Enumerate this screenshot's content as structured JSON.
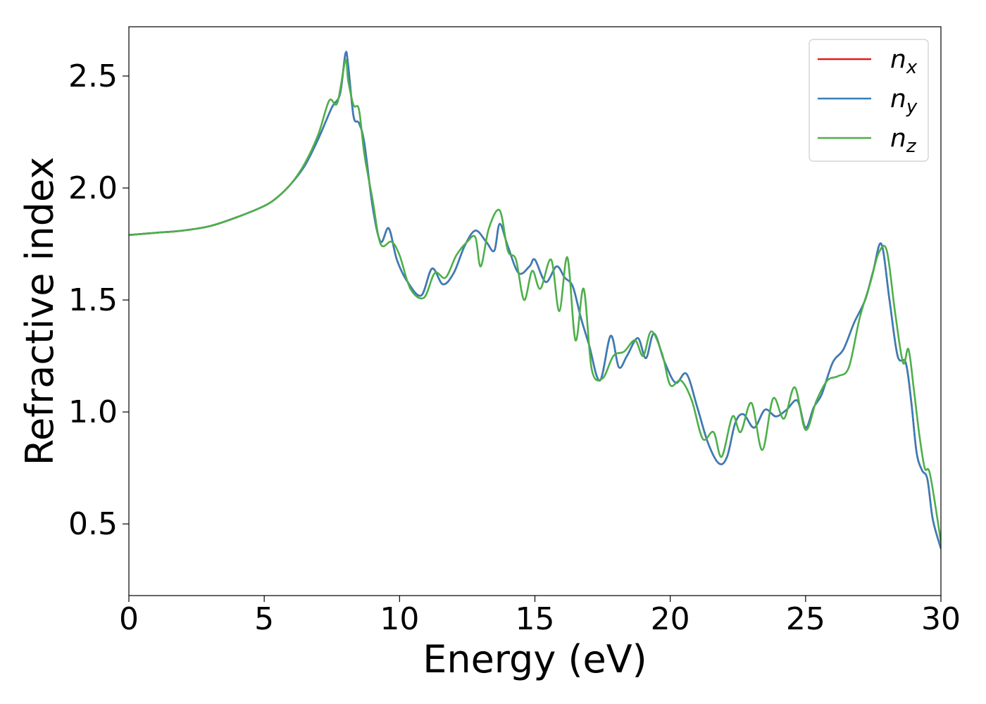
{
  "chart_data": {
    "type": "line",
    "title": "",
    "xlabel": "Energy (eV)",
    "ylabel": "Refractive index",
    "xlim": [
      0,
      30
    ],
    "ylim": [
      0.18,
      2.72
    ],
    "xticks": [
      0,
      5,
      10,
      15,
      20,
      25,
      30
    ],
    "xtick_labels": [
      "0",
      "5",
      "10",
      "15",
      "20",
      "25",
      "30"
    ],
    "yticks": [
      0.5,
      1.0,
      1.5,
      2.0,
      2.5
    ],
    "ytick_labels": [
      "0.5",
      "1.0",
      "1.5",
      "2.0",
      "2.5"
    ],
    "grid": false,
    "legend_position": "top-right",
    "series": [
      {
        "name": "n_x",
        "label_base": "n",
        "label_sub": "x",
        "color": "#e41a1c",
        "x": [
          0,
          1,
          2,
          3,
          4,
          5,
          5.5,
          6,
          6.5,
          7,
          7.5,
          7.8,
          8.0,
          8.1,
          8.3,
          8.5,
          8.7,
          9.0,
          9.3,
          9.6,
          9.9,
          10.3,
          10.8,
          11.2,
          11.6,
          12.0,
          12.4,
          12.8,
          13.2,
          13.5,
          13.7,
          14.0,
          14.4,
          14.8,
          15.0,
          15.4,
          15.8,
          16.1,
          16.4,
          16.7,
          17.0,
          17.4,
          17.8,
          18.1,
          18.4,
          18.8,
          19.1,
          19.4,
          19.8,
          20.2,
          20.6,
          21.0,
          21.4,
          21.8,
          22.1,
          22.4,
          22.7,
          23.1,
          23.5,
          23.9,
          24.3,
          24.7,
          25.0,
          25.3,
          25.6,
          26.0,
          26.4,
          26.8,
          27.2,
          27.5,
          27.8,
          28.1,
          28.4,
          28.7,
          28.9,
          29.1,
          29.3,
          29.5,
          29.7,
          30.0
        ],
        "y": [
          1.79,
          1.8,
          1.81,
          1.83,
          1.87,
          1.92,
          1.96,
          2.02,
          2.1,
          2.22,
          2.36,
          2.42,
          2.6,
          2.55,
          2.32,
          2.29,
          2.2,
          1.92,
          1.76,
          1.82,
          1.68,
          1.58,
          1.52,
          1.64,
          1.57,
          1.62,
          1.74,
          1.81,
          1.76,
          1.72,
          1.84,
          1.74,
          1.62,
          1.65,
          1.68,
          1.58,
          1.65,
          1.6,
          1.56,
          1.42,
          1.3,
          1.14,
          1.34,
          1.2,
          1.25,
          1.33,
          1.24,
          1.35,
          1.22,
          1.13,
          1.17,
          1.02,
          0.86,
          0.77,
          0.8,
          0.95,
          0.99,
          0.93,
          1.01,
          0.98,
          1.01,
          1.05,
          0.93,
          1.02,
          1.08,
          1.22,
          1.28,
          1.4,
          1.5,
          1.63,
          1.75,
          1.5,
          1.25,
          1.22,
          1.05,
          0.82,
          0.74,
          0.7,
          0.52,
          0.39
        ]
      },
      {
        "name": "n_y",
        "label_base": "n",
        "label_sub": "y",
        "color": "#377eb8",
        "x": [
          0,
          1,
          2,
          3,
          4,
          5,
          5.5,
          6,
          6.5,
          7,
          7.5,
          7.8,
          8.0,
          8.1,
          8.3,
          8.5,
          8.7,
          9.0,
          9.3,
          9.6,
          9.9,
          10.3,
          10.8,
          11.2,
          11.6,
          12.0,
          12.4,
          12.8,
          13.2,
          13.5,
          13.7,
          14.0,
          14.4,
          14.8,
          15.0,
          15.4,
          15.8,
          16.1,
          16.4,
          16.7,
          17.0,
          17.4,
          17.8,
          18.1,
          18.4,
          18.8,
          19.1,
          19.4,
          19.8,
          20.2,
          20.6,
          21.0,
          21.4,
          21.8,
          22.1,
          22.4,
          22.7,
          23.1,
          23.5,
          23.9,
          24.3,
          24.7,
          25.0,
          25.3,
          25.6,
          26.0,
          26.4,
          26.8,
          27.2,
          27.5,
          27.8,
          28.1,
          28.4,
          28.7,
          28.9,
          29.1,
          29.3,
          29.5,
          29.7,
          30.0
        ],
        "y": [
          1.79,
          1.8,
          1.81,
          1.83,
          1.87,
          1.92,
          1.96,
          2.02,
          2.1,
          2.22,
          2.36,
          2.42,
          2.6,
          2.55,
          2.32,
          2.29,
          2.2,
          1.92,
          1.76,
          1.82,
          1.68,
          1.58,
          1.52,
          1.64,
          1.57,
          1.62,
          1.74,
          1.81,
          1.76,
          1.72,
          1.84,
          1.74,
          1.62,
          1.65,
          1.68,
          1.58,
          1.65,
          1.6,
          1.56,
          1.42,
          1.3,
          1.14,
          1.34,
          1.2,
          1.25,
          1.33,
          1.24,
          1.35,
          1.22,
          1.13,
          1.17,
          1.02,
          0.86,
          0.77,
          0.8,
          0.95,
          0.99,
          0.93,
          1.01,
          0.98,
          1.01,
          1.05,
          0.93,
          1.02,
          1.08,
          1.22,
          1.28,
          1.4,
          1.5,
          1.63,
          1.75,
          1.5,
          1.25,
          1.22,
          1.05,
          0.82,
          0.74,
          0.7,
          0.52,
          0.39
        ]
      },
      {
        "name": "n_z",
        "label_base": "n",
        "label_sub": "z",
        "color": "#4daf4a",
        "x": [
          0,
          1,
          2,
          3,
          4,
          5,
          5.5,
          6,
          6.5,
          7,
          7.4,
          7.7,
          8.0,
          8.1,
          8.3,
          8.5,
          8.7,
          9.0,
          9.3,
          9.7,
          10.0,
          10.4,
          10.9,
          11.3,
          11.7,
          12.1,
          12.5,
          12.8,
          13.0,
          13.3,
          13.7,
          14.0,
          14.3,
          14.6,
          14.9,
          15.2,
          15.6,
          15.9,
          16.2,
          16.5,
          16.8,
          17.1,
          17.5,
          17.9,
          18.3,
          18.7,
          19.0,
          19.3,
          19.7,
          20.0,
          20.4,
          20.8,
          21.2,
          21.6,
          21.9,
          22.3,
          22.6,
          23.0,
          23.4,
          23.8,
          24.2,
          24.6,
          25.0,
          25.4,
          25.8,
          26.2,
          26.6,
          27.0,
          27.4,
          27.7,
          28.0,
          28.3,
          28.6,
          28.8,
          29.0,
          29.2,
          29.4,
          29.6,
          30.0
        ],
        "y": [
          1.79,
          1.8,
          1.81,
          1.83,
          1.87,
          1.92,
          1.96,
          2.02,
          2.11,
          2.24,
          2.39,
          2.38,
          2.57,
          2.48,
          2.37,
          2.35,
          2.15,
          1.95,
          1.75,
          1.76,
          1.7,
          1.55,
          1.51,
          1.62,
          1.6,
          1.7,
          1.76,
          1.78,
          1.65,
          1.82,
          1.9,
          1.72,
          1.68,
          1.5,
          1.63,
          1.55,
          1.68,
          1.45,
          1.69,
          1.32,
          1.55,
          1.19,
          1.15,
          1.25,
          1.27,
          1.32,
          1.25,
          1.36,
          1.26,
          1.12,
          1.14,
          1.05,
          0.88,
          0.91,
          0.8,
          0.98,
          0.91,
          1.04,
          0.83,
          1.06,
          0.97,
          1.11,
          0.92,
          1.05,
          1.14,
          1.16,
          1.2,
          1.42,
          1.58,
          1.71,
          1.72,
          1.45,
          1.22,
          1.28,
          1.1,
          0.9,
          0.75,
          0.72,
          0.42
        ]
      }
    ]
  }
}
